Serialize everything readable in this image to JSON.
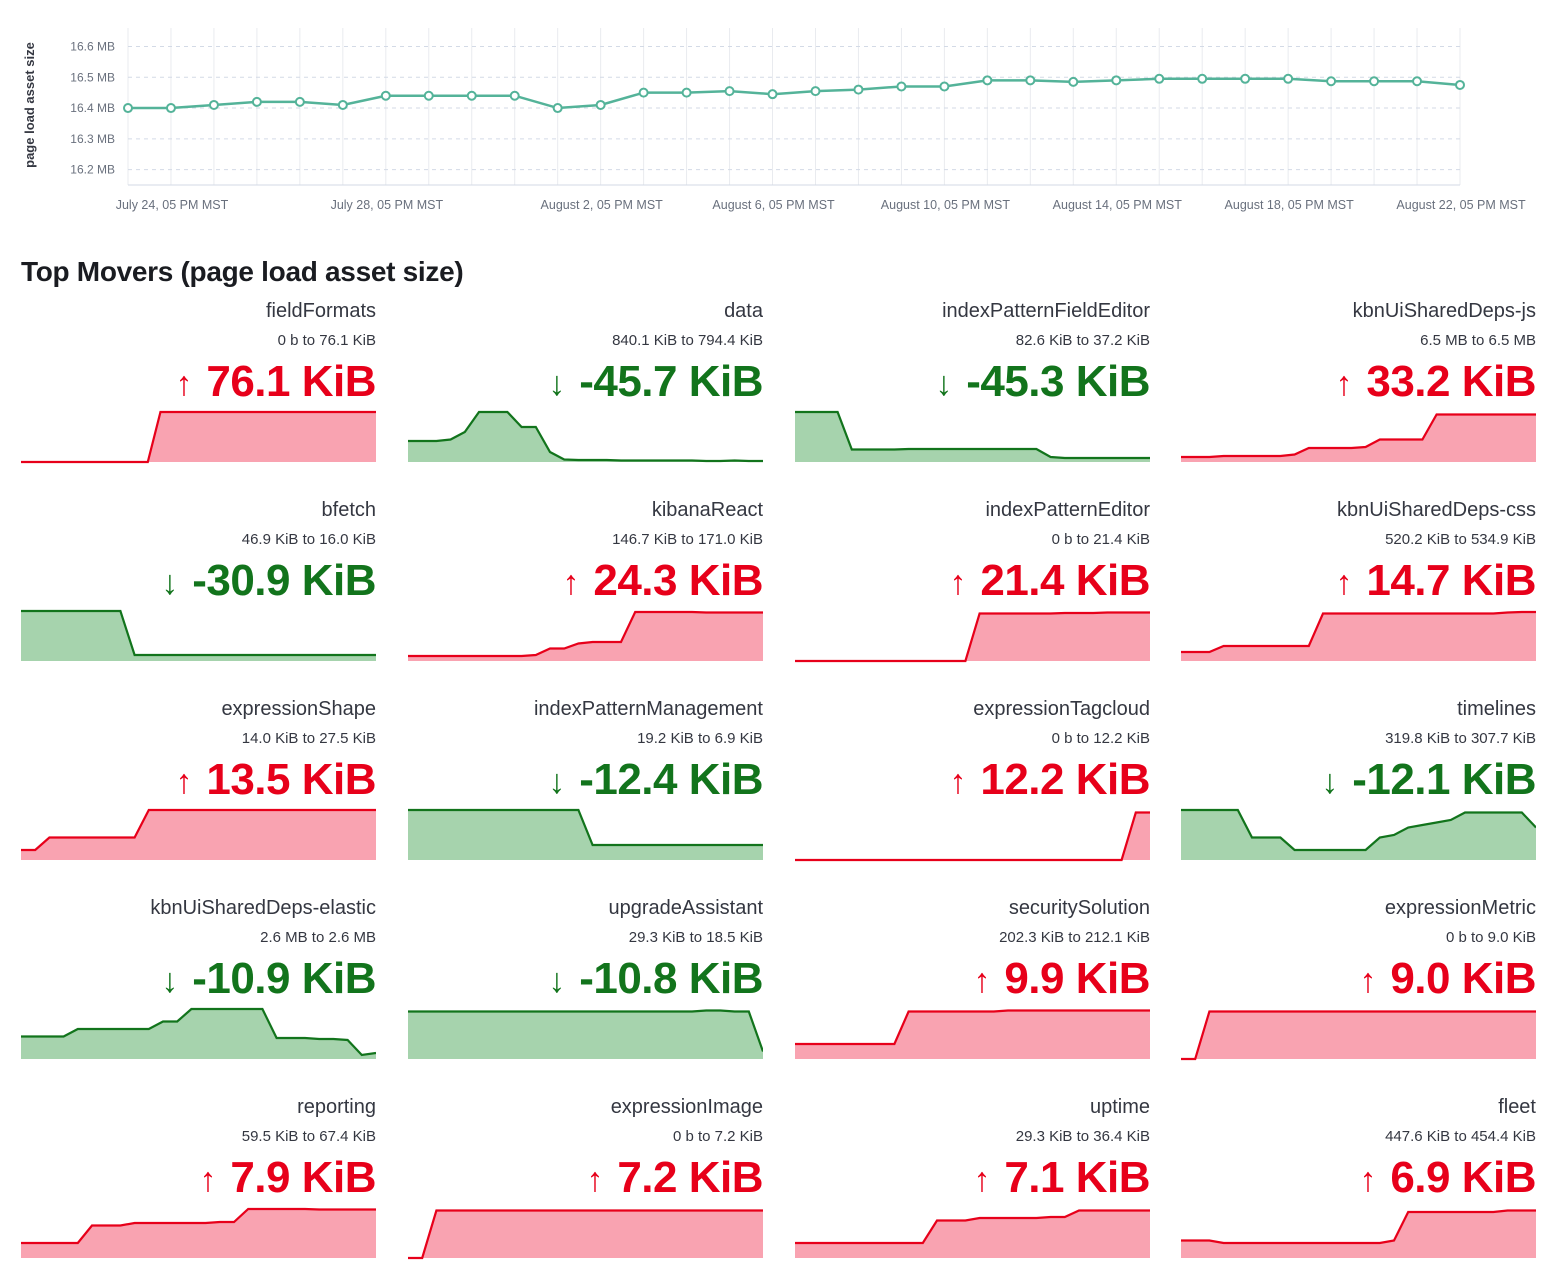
{
  "main_chart": {
    "ylabel": "page load asset size",
    "y_ticks": [
      "16.6 MB",
      "16.5 MB",
      "16.4 MB",
      "16.3 MB",
      "16.2 MB"
    ],
    "x_ticks": [
      "July 24, 05 PM MST",
      "July 28, 05 PM MST",
      "August 2, 05 PM MST",
      "August 6, 05 PM MST",
      "August 10, 05 PM MST",
      "August 14, 05 PM MST",
      "August 18, 05 PM MST",
      "August 22, 05 PM MST"
    ],
    "line_color": "#54b399"
  },
  "chart_data": {
    "type": "line",
    "xlabel": "",
    "ylabel": "page load asset size",
    "y_unit": "MB",
    "ylim": [
      16.15,
      16.66
    ],
    "x": [
      "July 24, 05 PM MST",
      "",
      "",
      "",
      "",
      "July 28, 05 PM MST",
      "",
      "",
      "",
      "",
      "August 2, 05 PM MST",
      "",
      "",
      "",
      "August 6, 05 PM MST",
      "",
      "",
      "",
      "August 10, 05 PM MST",
      "",
      "",
      "",
      "August 14, 05 PM MST",
      "",
      "",
      "",
      "August 18, 05 PM MST",
      "",
      "",
      "",
      "August 22, 05 PM MST",
      ""
    ],
    "series": [
      {
        "values": [
          16.4,
          16.4,
          16.41,
          16.42,
          16.42,
          16.41,
          16.44,
          16.44,
          16.44,
          16.44,
          16.4,
          16.41,
          16.45,
          16.45,
          16.455,
          16.445,
          16.455,
          16.46,
          16.47,
          16.47,
          16.49,
          16.49,
          16.485,
          16.49,
          16.495,
          16.495,
          16.495,
          16.495,
          16.487,
          16.487,
          16.487,
          16.475
        ]
      }
    ],
    "grid": true,
    "legend": "none"
  },
  "section_title": "Top Movers (page load asset size)",
  "arrows": {
    "up": "↑",
    "down": "↓"
  },
  "colors": {
    "up_text": "#e7001a",
    "up_line": "#e7001a",
    "up_fill": "#f9a3b1",
    "down_text": "#12741c",
    "down_line": "#12741c",
    "down_fill": "#a6d3ad"
  },
  "movers": [
    {
      "name": "fieldFormats",
      "range": "0 b to 76.1 KiB",
      "delta": "76.1 KiB",
      "direction": "up",
      "spark": [
        0,
        0,
        0,
        0,
        0,
        0,
        0,
        0,
        0,
        0,
        0,
        1,
        1,
        1,
        1,
        1,
        1,
        1,
        1,
        1,
        1,
        1,
        1,
        1,
        1,
        1,
        1,
        1,
        1
      ]
    },
    {
      "name": "data",
      "range": "840.1 KiB to 794.4 KiB",
      "delta": "-45.7 KiB",
      "direction": "down",
      "spark": [
        0.42,
        0.42,
        0.42,
        0.45,
        0.6,
        1,
        1,
        1,
        0.7,
        0.7,
        0.2,
        0.05,
        0.04,
        0.04,
        0.04,
        0.03,
        0.03,
        0.03,
        0.03,
        0.03,
        0.03,
        0.02,
        0.02,
        0.03,
        0.02,
        0.02
      ]
    },
    {
      "name": "indexPatternFieldEditor",
      "range": "82.6 KiB to 37.2 KiB",
      "delta": "-45.3 KiB",
      "direction": "down",
      "spark": [
        1,
        1,
        1,
        1,
        0.25,
        0.25,
        0.25,
        0.25,
        0.26,
        0.26,
        0.26,
        0.26,
        0.26,
        0.26,
        0.26,
        0.26,
        0.26,
        0.26,
        0.1,
        0.08,
        0.08,
        0.08,
        0.08,
        0.08,
        0.08,
        0.08
      ]
    },
    {
      "name": "kbnUiSharedDeps-js",
      "range": "6.5 MB to 6.5 MB",
      "delta": "33.2 KiB",
      "direction": "up",
      "spark": [
        0.1,
        0.1,
        0.1,
        0.12,
        0.12,
        0.12,
        0.12,
        0.12,
        0.15,
        0.28,
        0.28,
        0.28,
        0.28,
        0.3,
        0.45,
        0.45,
        0.45,
        0.45,
        0.95,
        0.95,
        0.95,
        0.95,
        0.95,
        0.95,
        0.95,
        0.95
      ]
    },
    {
      "name": "bfetch",
      "range": "46.9 KiB to 16.0 KiB",
      "delta": "-30.9 KiB",
      "direction": "down",
      "spark": [
        1,
        1,
        1,
        1,
        1,
        1,
        1,
        1,
        0.12,
        0.12,
        0.12,
        0.12,
        0.12,
        0.12,
        0.12,
        0.12,
        0.12,
        0.12,
        0.12,
        0.12,
        0.12,
        0.12,
        0.12,
        0.12,
        0.12,
        0.12
      ]
    },
    {
      "name": "kibanaReact",
      "range": "146.7 KiB to 171.0 KiB",
      "delta": "24.3 KiB",
      "direction": "up",
      "spark": [
        0.1,
        0.1,
        0.1,
        0.1,
        0.1,
        0.1,
        0.1,
        0.1,
        0.1,
        0.12,
        0.25,
        0.25,
        0.35,
        0.38,
        0.38,
        0.38,
        0.98,
        0.98,
        0.98,
        0.98,
        0.98,
        0.97,
        0.97,
        0.97,
        0.97,
        0.97
      ]
    },
    {
      "name": "indexPatternEditor",
      "range": "0 b to 21.4 KiB",
      "delta": "21.4 KiB",
      "direction": "up",
      "spark": [
        0,
        0,
        0,
        0,
        0,
        0,
        0,
        0,
        0,
        0,
        0,
        0,
        0,
        0.95,
        0.95,
        0.95,
        0.95,
        0.95,
        0.95,
        0.96,
        0.96,
        0.96,
        0.97,
        0.97,
        0.97,
        0.97
      ]
    },
    {
      "name": "kbnUiSharedDeps-css",
      "range": "520.2 KiB to 534.9 KiB",
      "delta": "14.7 KiB",
      "direction": "up",
      "spark": [
        0.18,
        0.18,
        0.18,
        0.3,
        0.3,
        0.3,
        0.3,
        0.3,
        0.3,
        0.3,
        0.95,
        0.95,
        0.95,
        0.95,
        0.95,
        0.95,
        0.95,
        0.95,
        0.95,
        0.95,
        0.95,
        0.95,
        0.95,
        0.97,
        0.98,
        0.98
      ]
    },
    {
      "name": "expressionShape",
      "range": "14.0 KiB to 27.5 KiB",
      "delta": "13.5 KiB",
      "direction": "up",
      "spark": [
        0.2,
        0.2,
        0.45,
        0.45,
        0.45,
        0.45,
        0.45,
        0.45,
        0.45,
        1,
        1,
        1,
        1,
        1,
        1,
        1,
        1,
        1,
        1,
        1,
        1,
        1,
        1,
        1,
        1,
        1
      ]
    },
    {
      "name": "indexPatternManagement",
      "range": "19.2 KiB to 6.9 KiB",
      "delta": "-12.4 KiB",
      "direction": "down",
      "spark": [
        1,
        1,
        1,
        1,
        1,
        1,
        1,
        1,
        1,
        1,
        1,
        1,
        1,
        0.3,
        0.3,
        0.3,
        0.3,
        0.3,
        0.3,
        0.3,
        0.3,
        0.3,
        0.3,
        0.3,
        0.3,
        0.3
      ]
    },
    {
      "name": "expressionTagcloud",
      "range": "0 b to 12.2 KiB",
      "delta": "12.2 KiB",
      "direction": "up",
      "spark": [
        0,
        0,
        0,
        0,
        0,
        0,
        0,
        0,
        0,
        0,
        0,
        0,
        0,
        0,
        0,
        0,
        0,
        0,
        0,
        0,
        0,
        0,
        0,
        0,
        0.95,
        0.95
      ]
    },
    {
      "name": "timelines",
      "range": "319.8 KiB to 307.7 KiB",
      "delta": "-12.1 KiB",
      "direction": "down",
      "spark": [
        1,
        1,
        1,
        1,
        1,
        0.45,
        0.45,
        0.45,
        0.2,
        0.2,
        0.2,
        0.2,
        0.2,
        0.2,
        0.45,
        0.5,
        0.65,
        0.7,
        0.75,
        0.8,
        0.95,
        0.95,
        0.95,
        0.95,
        0.95,
        0.65
      ]
    },
    {
      "name": "kbnUiSharedDeps-elastic",
      "range": "2.6 MB to 2.6 MB",
      "delta": "-10.9 KiB",
      "direction": "down",
      "spark": [
        0.45,
        0.45,
        0.45,
        0.45,
        0.6,
        0.6,
        0.6,
        0.6,
        0.6,
        0.6,
        0.75,
        0.75,
        1,
        1,
        1,
        1,
        1,
        1,
        0.42,
        0.42,
        0.42,
        0.4,
        0.4,
        0.38,
        0.08,
        0.12
      ]
    },
    {
      "name": "upgradeAssistant",
      "range": "29.3 KiB to 18.5 KiB",
      "delta": "-10.8 KiB",
      "direction": "down",
      "spark": [
        0.95,
        0.95,
        0.95,
        0.95,
        0.95,
        0.95,
        0.95,
        0.95,
        0.95,
        0.95,
        0.95,
        0.95,
        0.95,
        0.95,
        0.95,
        0.95,
        0.95,
        0.95,
        0.95,
        0.95,
        0.95,
        0.97,
        0.97,
        0.95,
        0.95,
        0.15
      ]
    },
    {
      "name": "securitySolution",
      "range": "202.3 KiB to 212.1 KiB",
      "delta": "9.9 KiB",
      "direction": "up",
      "spark": [
        0.3,
        0.3,
        0.3,
        0.3,
        0.3,
        0.3,
        0.3,
        0.3,
        0.95,
        0.95,
        0.95,
        0.95,
        0.95,
        0.95,
        0.95,
        0.97,
        0.97,
        0.97,
        0.97,
        0.97,
        0.97,
        0.97,
        0.97,
        0.97,
        0.97,
        0.97
      ]
    },
    {
      "name": "expressionMetric",
      "range": "0 b to 9.0 KiB",
      "delta": "9.0 KiB",
      "direction": "up",
      "spark": [
        0,
        0,
        0.95,
        0.95,
        0.95,
        0.95,
        0.95,
        0.95,
        0.95,
        0.95,
        0.95,
        0.95,
        0.95,
        0.95,
        0.95,
        0.95,
        0.95,
        0.95,
        0.95,
        0.95,
        0.95,
        0.95,
        0.95,
        0.95,
        0.95,
        0.95
      ]
    },
    {
      "name": "reporting",
      "range": "59.5 KiB to 67.4 KiB",
      "delta": "7.9 KiB",
      "direction": "up",
      "spark": [
        0.3,
        0.3,
        0.3,
        0.3,
        0.3,
        0.65,
        0.65,
        0.65,
        0.7,
        0.7,
        0.7,
        0.7,
        0.7,
        0.7,
        0.72,
        0.72,
        0.98,
        0.98,
        0.98,
        0.98,
        0.98,
        0.97,
        0.97,
        0.97,
        0.97,
        0.97
      ]
    },
    {
      "name": "expressionImage",
      "range": "0 b to 7.2 KiB",
      "delta": "7.2 KiB",
      "direction": "up",
      "spark": [
        0,
        0,
        0.95,
        0.95,
        0.95,
        0.95,
        0.95,
        0.95,
        0.95,
        0.95,
        0.95,
        0.95,
        0.95,
        0.95,
        0.95,
        0.95,
        0.95,
        0.95,
        0.95,
        0.95,
        0.95,
        0.95,
        0.95,
        0.95,
        0.95,
        0.95
      ]
    },
    {
      "name": "uptime",
      "range": "29.3 KiB to 36.4 KiB",
      "delta": "7.1 KiB",
      "direction": "up",
      "spark": [
        0.3,
        0.3,
        0.3,
        0.3,
        0.3,
        0.3,
        0.3,
        0.3,
        0.3,
        0.3,
        0.75,
        0.75,
        0.75,
        0.8,
        0.8,
        0.8,
        0.8,
        0.8,
        0.82,
        0.82,
        0.95,
        0.95,
        0.95,
        0.95,
        0.95,
        0.95
      ]
    },
    {
      "name": "fleet",
      "range": "447.6 KiB to 454.4 KiB",
      "delta": "6.9 KiB",
      "direction": "up",
      "spark": [
        0.35,
        0.35,
        0.35,
        0.3,
        0.3,
        0.3,
        0.3,
        0.3,
        0.3,
        0.3,
        0.3,
        0.3,
        0.3,
        0.3,
        0.3,
        0.35,
        0.92,
        0.92,
        0.92,
        0.92,
        0.92,
        0.92,
        0.92,
        0.95,
        0.95,
        0.95
      ]
    }
  ]
}
